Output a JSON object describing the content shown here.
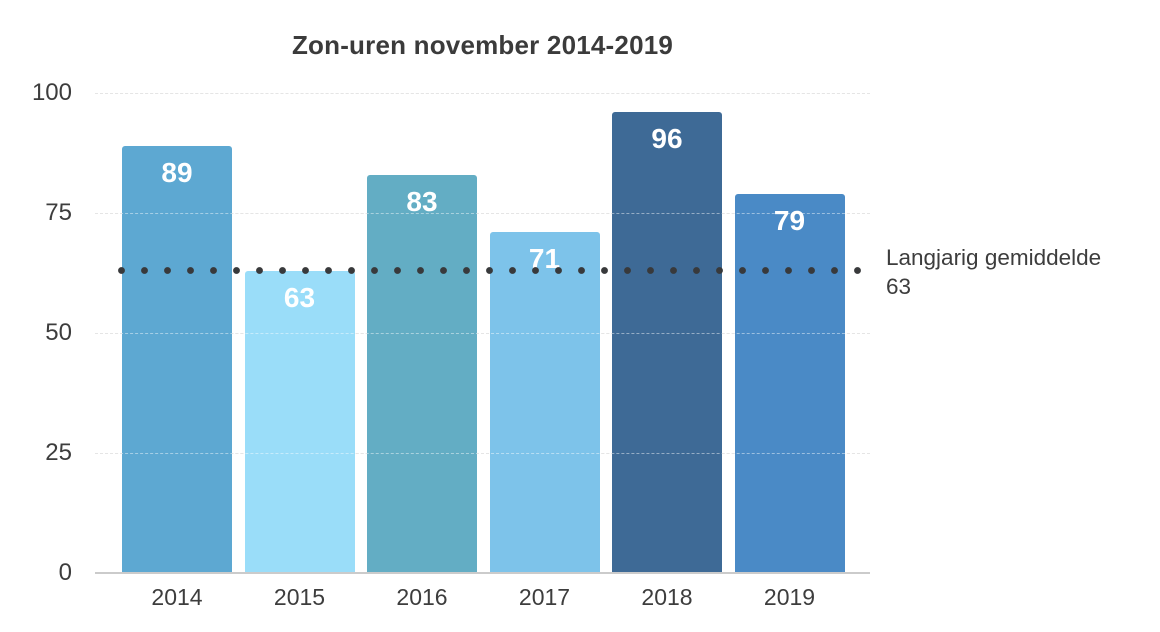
{
  "chart_data": {
    "type": "bar",
    "title": "Zon-uren november 2014-2019",
    "categories": [
      "2014",
      "2015",
      "2016",
      "2017",
      "2018",
      "2019"
    ],
    "values": [
      89,
      63,
      83,
      71,
      96,
      79
    ],
    "bar_colors": [
      "#5da8d2",
      "#9addf9",
      "#63adc4",
      "#7dc3ea",
      "#3e6a96",
      "#4a8ac6"
    ],
    "value_label_color": "#ffffff",
    "xlabel": "",
    "ylabel": "",
    "ylim": [
      0,
      100
    ],
    "yticks": [
      0,
      25,
      50,
      75,
      100
    ],
    "grid": "horizontal-dashed",
    "legend": "none",
    "reference_line": {
      "value": 63,
      "label": "Langjarig gemiddelde",
      "style": "dotted",
      "color": "#38393b"
    }
  }
}
